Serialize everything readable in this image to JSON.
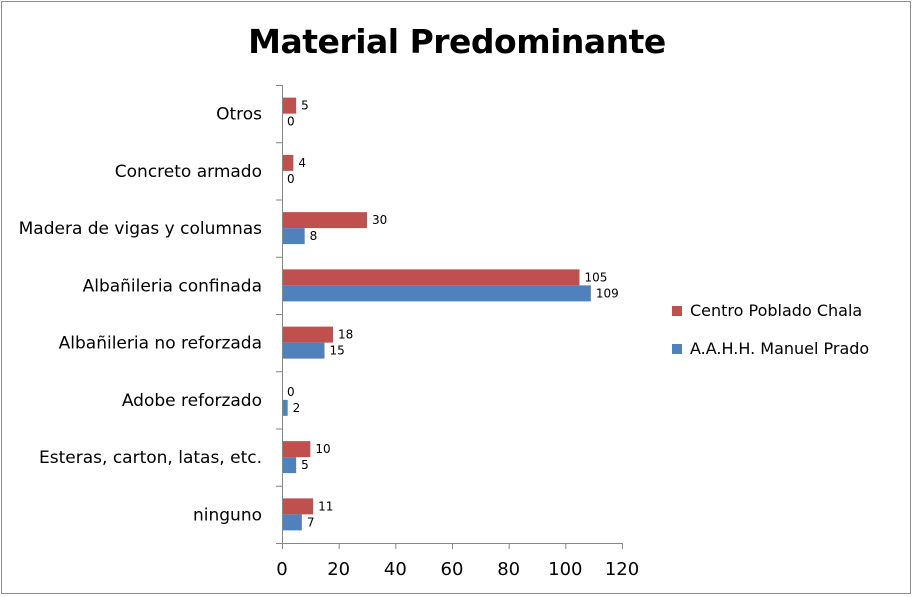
{
  "chart_data": {
    "type": "bar",
    "orientation": "horizontal",
    "title": "Material Predominante",
    "categories": [
      "Otros",
      "Concreto armado",
      "Madera de vigas y columnas",
      "Albañileria confinada",
      "Albañileria no reforzada",
      "Adobe reforzado",
      "Esteras, carton, latas, etc.",
      "ninguno"
    ],
    "series": [
      {
        "name": "Centro Poblado Chala",
        "color": "#c0504d",
        "values": [
          5,
          4,
          30,
          105,
          18,
          0,
          10,
          11
        ]
      },
      {
        "name": "A.A.H.H. Manuel Prado",
        "color": "#4f81bd",
        "values": [
          0,
          0,
          8,
          109,
          15,
          2,
          5,
          7
        ]
      }
    ],
    "xlim": [
      0,
      120
    ],
    "xticks": [
      0,
      20,
      40,
      60,
      80,
      100,
      120
    ],
    "xlabel": "",
    "ylabel": "",
    "grid": false,
    "legend_position": "right",
    "data_labels": true
  }
}
